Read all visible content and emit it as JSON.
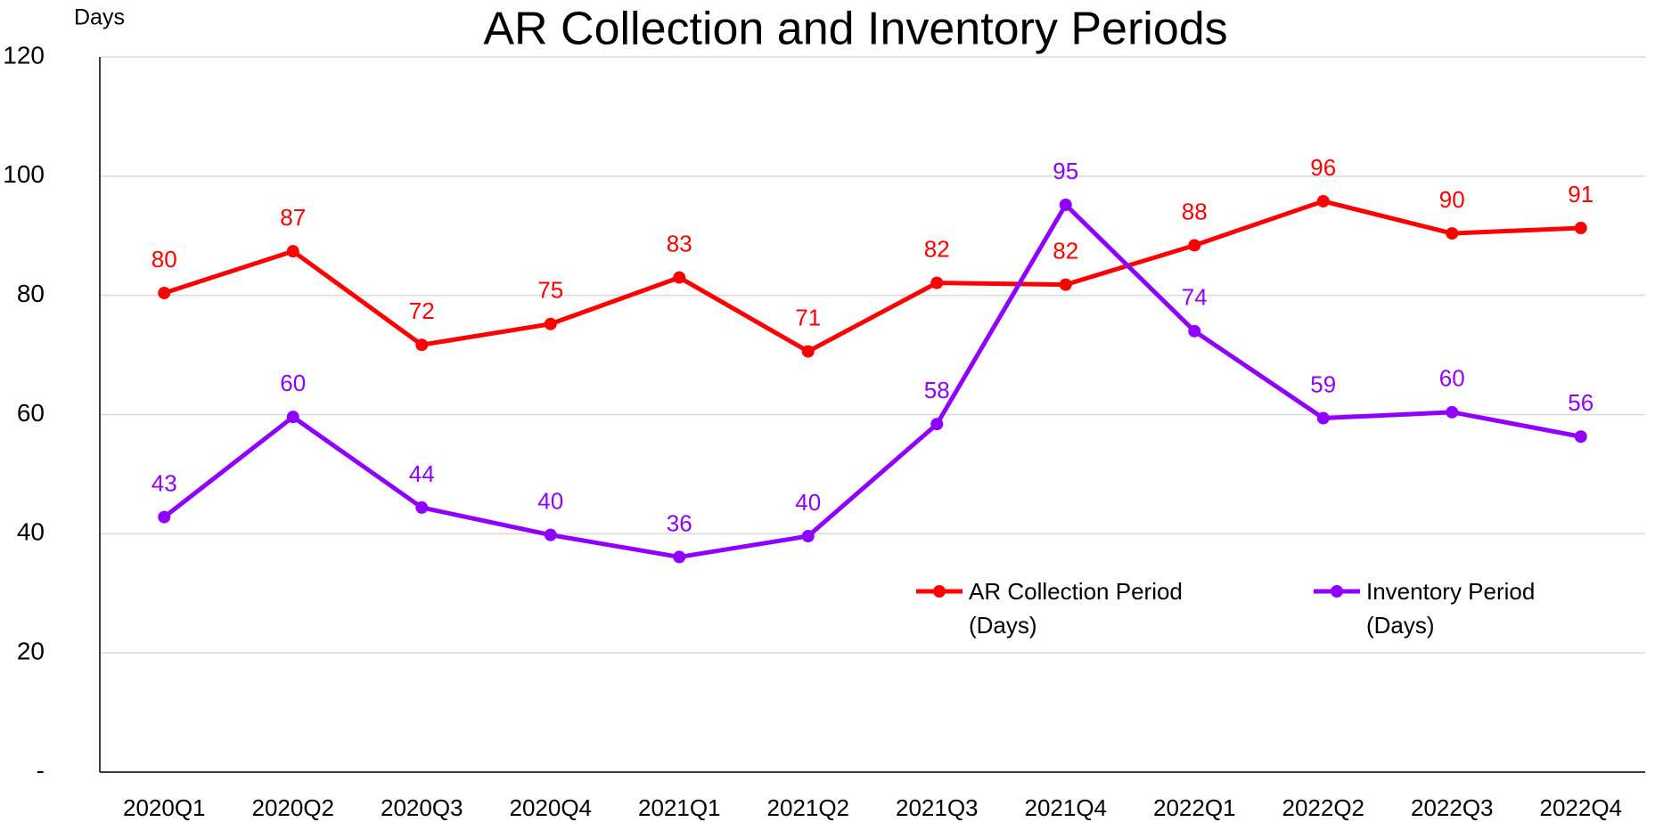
{
  "chart_data": {
    "type": "line",
    "title": "AR Collection and Inventory Periods",
    "y_axis_label": "Days",
    "categories": [
      "2020Q1",
      "2020Q2",
      "2020Q3",
      "2020Q4",
      "2021Q1",
      "2021Q2",
      "2021Q3",
      "2021Q4",
      "2022Q1",
      "2022Q2",
      "2022Q3",
      "2022Q4"
    ],
    "series": [
      {
        "name": "AR Collection Period (Days)",
        "color": "#ff0000",
        "values": [
          80.4,
          87.4,
          71.7,
          75.2,
          83.0,
          70.6,
          82.1,
          81.8,
          88.4,
          95.8,
          90.4,
          91.3
        ],
        "value_labels": [
          "80",
          "87",
          "72",
          "75",
          "83",
          "71",
          "82",
          "82",
          "88",
          "96",
          "90",
          "91"
        ]
      },
      {
        "name": "Inventory Period (Days)",
        "color": "#8f00ff",
        "values": [
          42.8,
          59.6,
          44.4,
          39.8,
          36.1,
          39.6,
          58.4,
          95.2,
          74.0,
          59.4,
          60.4,
          56.3
        ],
        "value_labels": [
          "43",
          "60",
          "44",
          "40",
          "36",
          "40",
          "58",
          "95",
          "74",
          "59",
          "60",
          "56"
        ]
      }
    ],
    "ylim": [
      0,
      120
    ],
    "yticks": [
      {
        "value": 0,
        "label": "-"
      },
      20,
      40,
      60,
      80,
      100,
      120
    ],
    "grid": true
  }
}
